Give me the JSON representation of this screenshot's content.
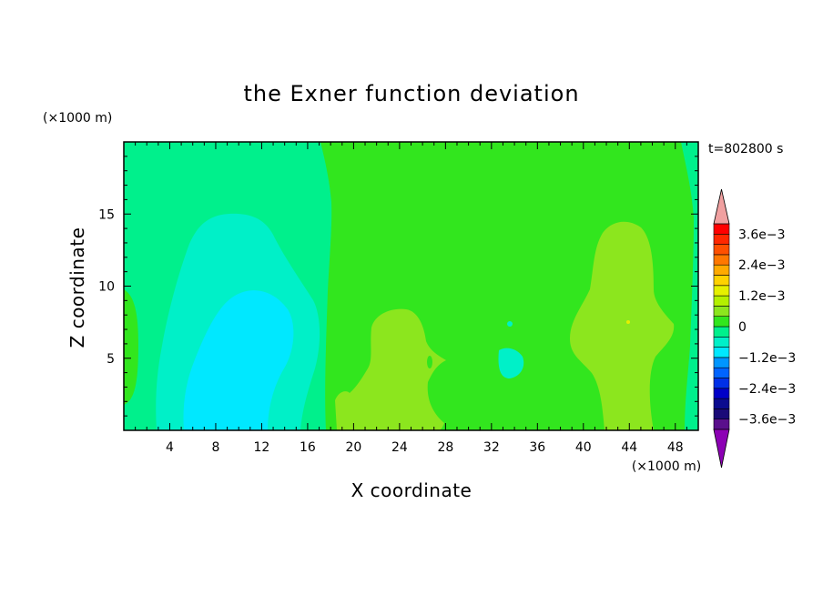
{
  "chart_data": {
    "type": "heatmap",
    "subtype": "filled-contour",
    "title": "the Exner function deviation",
    "xlabel": "X coordinate",
    "ylabel": "Z coordinate",
    "x_unit": "(×1000 m)",
    "y_unit": "(×1000 m)",
    "time_label": "t=802800 s",
    "xlim": [
      0,
      50
    ],
    "ylim": [
      0,
      20
    ],
    "x_ticks": [
      4,
      8,
      12,
      16,
      20,
      24,
      28,
      32,
      36,
      40,
      44,
      48
    ],
    "y_ticks": [
      5,
      10,
      15
    ],
    "colorbar": {
      "levels": [
        -0.004,
        -0.0036,
        -0.0032,
        -0.0028,
        -0.0024,
        -0.002,
        -0.0016,
        -0.0012,
        -0.0008,
        -0.0004,
        0,
        0.0004,
        0.0008,
        0.0012,
        0.0016,
        0.002,
        0.0024,
        0.0028,
        0.0032,
        0.0036,
        0.004
      ],
      "colors": [
        "#5a0f8c",
        "#1a0a78",
        "#0b0b8f",
        "#0000c8",
        "#0030e8",
        "#0064ff",
        "#0096ff",
        "#00e8ff",
        "#00f0c8",
        "#00f08c",
        "#32e61e",
        "#8ce61e",
        "#b4f000",
        "#e6f000",
        "#ffd200",
        "#ffaa00",
        "#ff7800",
        "#ff5000",
        "#ff2800",
        "#ff0000"
      ],
      "under_color": "#8c00b4",
      "over_color": "#f0a0a0",
      "labels": [
        "3.6e−3",
        "2.4e−3",
        "1.2e−3",
        "0",
        "−1.2e−3",
        "−2.4e−3",
        "−3.6e−3"
      ],
      "label_values": [
        0.0036,
        0.0024,
        0.0012,
        0,
        -0.0012,
        -0.0024,
        -0.0036
      ]
    },
    "regions": [
      {
        "band": "0 to 4e-4",
        "color": "#32e61e",
        "note": "background over most of domain (x ≈ 18–47)"
      },
      {
        "band": "-4e-4 to 0",
        "color": "#00f08c",
        "note": "left half x ≈ 0–18 and right edge x ≈ 47–50"
      },
      {
        "band": "-8e-4 to -4e-4",
        "color": "#00f0c8",
        "note": "plume x ≈ 3–17, z ≈ 0–15; small patch x ≈ 33, z ≈ 4–6"
      },
      {
        "band": "-1.2e-3 to -8e-4",
        "color": "#00e8ff",
        "note": "core x ≈ 5–15, z ≈ 0–10"
      },
      {
        "band": "4e-4 to 8e-4",
        "color": "#8ce61e",
        "note": "blobs x ≈ 19–28, z ≈ 0–8.5 and x ≈ 39–49, z ≈ 0–14.5"
      }
    ]
  }
}
